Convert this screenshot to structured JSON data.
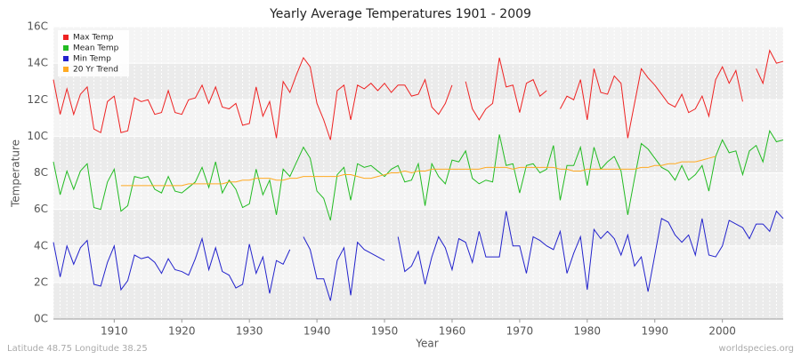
{
  "chart_data": {
    "type": "line",
    "title": "Yearly Average Temperatures 1901 - 2009",
    "x_label": "Year",
    "y_label": "Temperature",
    "footer_left": "Latitude 48.75 Longitude 38.25",
    "footer_right": "worldspecies.org",
    "legend_position": "upper left",
    "grid": true,
    "xlim": [
      1901,
      2009
    ],
    "xticks": [
      1910,
      1920,
      1930,
      1940,
      1950,
      1960,
      1970,
      1980,
      1990,
      2000
    ],
    "ylim": [
      0,
      16
    ],
    "yticks": [
      {
        "value": 0,
        "label": "0C"
      },
      {
        "value": 2,
        "label": "2C"
      },
      {
        "value": 4,
        "label": "4C"
      },
      {
        "value": 6,
        "label": "6C"
      },
      {
        "value": 8,
        "label": "8C"
      },
      {
        "value": 10,
        "label": "10C"
      },
      {
        "value": 12,
        "label": "12C"
      },
      {
        "value": 14,
        "label": "14C"
      },
      {
        "value": 16,
        "label": "16C"
      }
    ],
    "x": [
      1901,
      1902,
      1903,
      1904,
      1905,
      1906,
      1907,
      1908,
      1909,
      1910,
      1911,
      1912,
      1913,
      1914,
      1915,
      1916,
      1917,
      1918,
      1919,
      1920,
      1921,
      1922,
      1923,
      1924,
      1925,
      1926,
      1927,
      1928,
      1929,
      1930,
      1931,
      1932,
      1933,
      1934,
      1935,
      1936,
      1937,
      1938,
      1939,
      1940,
      1941,
      1942,
      1943,
      1944,
      1945,
      1946,
      1947,
      1948,
      1949,
      1950,
      1951,
      1952,
      1953,
      1954,
      1955,
      1956,
      1957,
      1958,
      1959,
      1960,
      1961,
      1962,
      1963,
      1964,
      1965,
      1966,
      1967,
      1968,
      1969,
      1970,
      1971,
      1972,
      1973,
      1974,
      1975,
      1976,
      1977,
      1978,
      1979,
      1980,
      1981,
      1982,
      1983,
      1984,
      1985,
      1986,
      1987,
      1988,
      1989,
      1990,
      1991,
      1992,
      1993,
      1994,
      1995,
      1996,
      1997,
      1998,
      1999,
      2000,
      2001,
      2002,
      2003,
      2004,
      2005,
      2006,
      2007,
      2008,
      2009
    ],
    "series": [
      {
        "name": "Max Temp",
        "color": "#ee2222",
        "values": [
          13.1,
          11.2,
          12.6,
          11.2,
          12.3,
          12.7,
          10.4,
          10.2,
          11.9,
          12.2,
          10.2,
          10.3,
          12.1,
          11.9,
          12.0,
          11.2,
          11.3,
          12.5,
          11.3,
          11.2,
          12.0,
          12.1,
          12.8,
          11.8,
          12.7,
          11.6,
          11.5,
          11.8,
          10.6,
          10.7,
          12.7,
          11.1,
          11.9,
          9.9,
          13.0,
          12.4,
          13.4,
          14.3,
          13.8,
          11.8,
          10.9,
          9.8,
          12.5,
          12.8,
          10.9,
          12.8,
          12.6,
          12.9,
          12.5,
          12.9,
          12.4,
          12.8,
          12.8,
          12.2,
          12.3,
          13.1,
          11.6,
          11.2,
          11.8,
          12.8,
          null,
          13.0,
          11.5,
          10.9,
          11.5,
          11.8,
          14.3,
          12.7,
          12.8,
          11.3,
          12.9,
          13.1,
          12.2,
          12.5,
          null,
          11.5,
          12.2,
          12.0,
          13.1,
          10.9,
          13.7,
          12.4,
          12.3,
          13.3,
          12.9,
          9.9,
          11.8,
          13.7,
          13.2,
          12.8,
          12.3,
          11.8,
          11.6,
          12.3,
          11.3,
          11.5,
          12.2,
          11.1,
          13.1,
          13.8,
          12.9,
          13.6,
          11.9,
          null,
          13.7,
          12.9,
          14.7,
          14.0,
          14.1
        ]
      },
      {
        "name": "Mean Temp",
        "color": "#22bb22",
        "values": [
          8.6,
          6.8,
          8.1,
          7.1,
          8.1,
          8.5,
          6.1,
          6.0,
          7.5,
          8.2,
          5.9,
          6.2,
          7.8,
          7.7,
          7.8,
          7.1,
          6.9,
          7.8,
          7.0,
          6.9,
          7.2,
          7.5,
          8.3,
          7.2,
          8.6,
          6.9,
          7.6,
          7.1,
          6.1,
          6.3,
          8.2,
          6.8,
          7.6,
          5.7,
          8.2,
          7.8,
          8.6,
          9.4,
          8.8,
          7.0,
          6.6,
          5.4,
          7.9,
          8.3,
          6.5,
          8.5,
          8.3,
          8.4,
          8.1,
          7.8,
          8.2,
          8.4,
          7.5,
          7.6,
          8.5,
          6.2,
          8.5,
          7.8,
          7.4,
          8.7,
          8.6,
          9.2,
          7.7,
          7.4,
          7.6,
          7.5,
          10.1,
          8.4,
          8.5,
          6.9,
          8.4,
          8.5,
          8.0,
          8.2,
          9.5,
          6.5,
          8.4,
          8.4,
          9.4,
          7.3,
          9.4,
          8.2,
          8.6,
          8.9,
          8.1,
          5.7,
          7.7,
          9.6,
          9.3,
          8.8,
          8.3,
          8.1,
          7.6,
          8.4,
          7.6,
          7.9,
          8.4,
          7.0,
          8.9,
          9.8,
          9.1,
          9.2,
          7.9,
          9.2,
          9.5,
          8.6,
          10.3,
          9.7,
          9.8
        ]
      },
      {
        "name": "Min Temp",
        "color": "#2222cc",
        "values": [
          4.2,
          2.3,
          4.0,
          3.0,
          3.9,
          4.3,
          1.9,
          1.8,
          3.1,
          4.0,
          1.6,
          2.1,
          3.5,
          3.3,
          3.4,
          3.1,
          2.5,
          3.3,
          2.7,
          2.6,
          2.4,
          3.3,
          4.4,
          2.7,
          3.9,
          2.6,
          2.4,
          1.7,
          1.9,
          4.1,
          2.5,
          3.4,
          1.4,
          3.2,
          3.0,
          3.8,
          null,
          4.5,
          3.8,
          2.2,
          2.2,
          1.0,
          3.2,
          3.9,
          1.3,
          4.2,
          3.8,
          3.6,
          3.4,
          3.2,
          null,
          4.5,
          2.6,
          2.9,
          3.7,
          1.9,
          3.4,
          4.5,
          3.9,
          2.7,
          4.4,
          4.2,
          3.1,
          4.8,
          3.4,
          3.4,
          3.4,
          5.9,
          4.0,
          4.0,
          2.5,
          4.5,
          4.3,
          4.0,
          3.8,
          4.8,
          2.5,
          3.6,
          4.5,
          1.6,
          4.9,
          4.4,
          4.8,
          4.4,
          3.5,
          4.6,
          2.9,
          3.4,
          1.5,
          3.5,
          5.5,
          5.3,
          4.6,
          4.2,
          4.6,
          3.5,
          5.5,
          3.5,
          3.4,
          4.0,
          5.4,
          5.2,
          5.0,
          4.4,
          5.2,
          5.2,
          4.8,
          5.9,
          5.5
        ]
      },
      {
        "name": "20 Yr Trend",
        "color": "#ffaa22",
        "values": [
          null,
          null,
          null,
          null,
          null,
          null,
          null,
          null,
          null,
          null,
          7.3,
          7.3,
          7.3,
          7.3,
          7.3,
          7.3,
          7.3,
          7.3,
          7.3,
          7.3,
          7.4,
          7.4,
          7.4,
          7.4,
          7.4,
          7.4,
          7.5,
          7.5,
          7.6,
          7.6,
          7.7,
          7.7,
          7.7,
          7.6,
          7.6,
          7.7,
          7.7,
          7.8,
          7.8,
          7.8,
          7.8,
          7.8,
          7.8,
          7.9,
          7.9,
          7.8,
          7.7,
          7.7,
          7.8,
          7.9,
          8.0,
          8.0,
          8.1,
          8.0,
          8.1,
          8.1,
          8.2,
          8.2,
          8.2,
          8.2,
          8.2,
          8.2,
          8.2,
          8.2,
          8.3,
          8.3,
          8.3,
          8.3,
          8.2,
          8.3,
          8.3,
          8.3,
          8.3,
          8.3,
          8.3,
          8.2,
          8.2,
          8.1,
          8.1,
          8.2,
          8.2,
          8.2,
          8.2,
          8.2,
          8.2,
          8.2,
          8.2,
          8.3,
          8.3,
          8.4,
          8.4,
          8.5,
          8.5,
          8.6,
          8.6,
          8.6,
          8.7,
          8.8,
          8.9,
          null,
          null,
          null,
          null,
          null,
          null,
          null,
          null,
          null,
          null
        ]
      }
    ]
  }
}
